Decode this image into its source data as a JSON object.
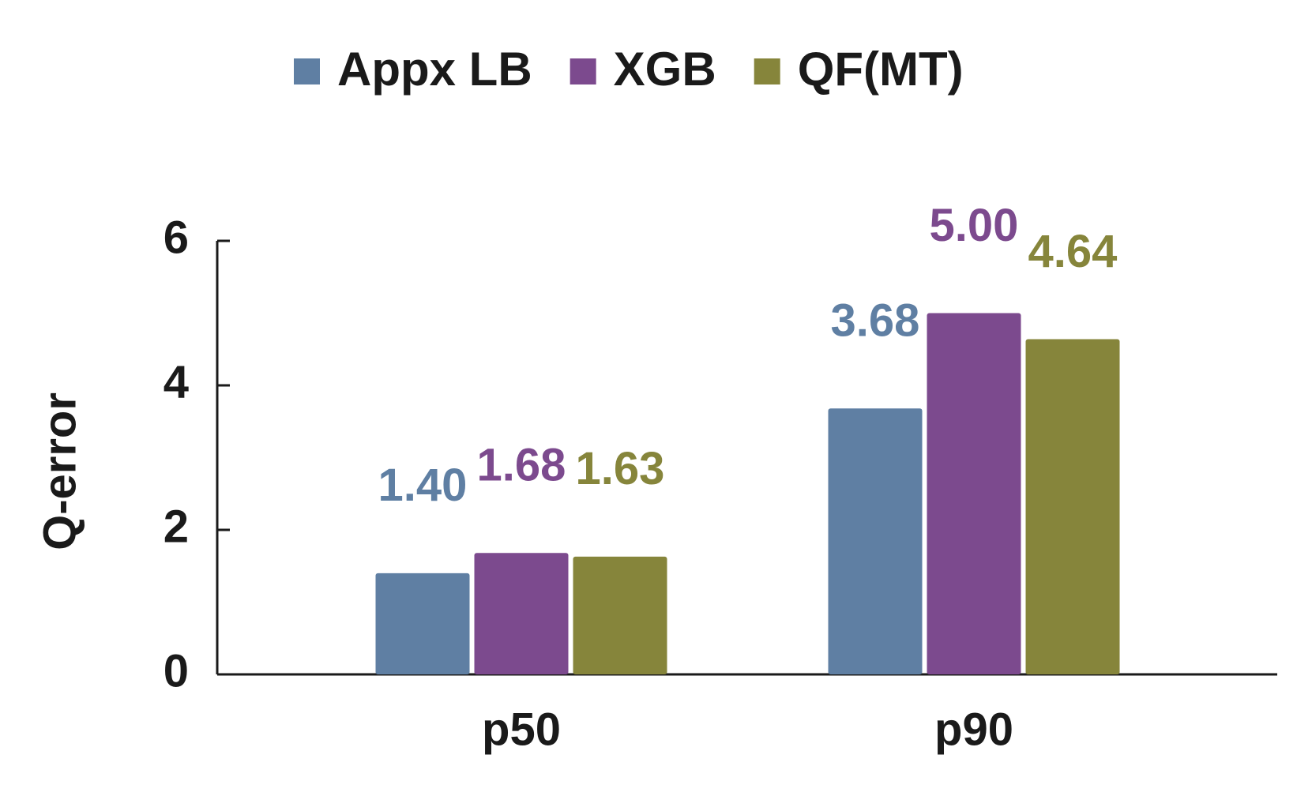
{
  "chart_data": {
    "type": "bar",
    "y_label": "Q-error",
    "categories": [
      "p50",
      "p90"
    ],
    "series": [
      {
        "name": "Appx LB",
        "color": "#5f7fa3",
        "values": [
          1.4,
          3.68
        ],
        "value_labels": [
          "1.40",
          "3.68"
        ]
      },
      {
        "name": "XGB",
        "color": "#7c4a8e",
        "values": [
          1.68,
          5
        ],
        "value_labels": [
          "1.68",
          "5.00"
        ]
      },
      {
        "name": "QF(MT)",
        "color": "#86853b",
        "values": [
          1.63,
          4.64
        ],
        "value_labels": [
          "1.63",
          "4.64"
        ]
      }
    ],
    "ylim": [
      0,
      6
    ],
    "yticks": [
      0,
      2,
      4,
      6
    ],
    "legend": "top"
  }
}
